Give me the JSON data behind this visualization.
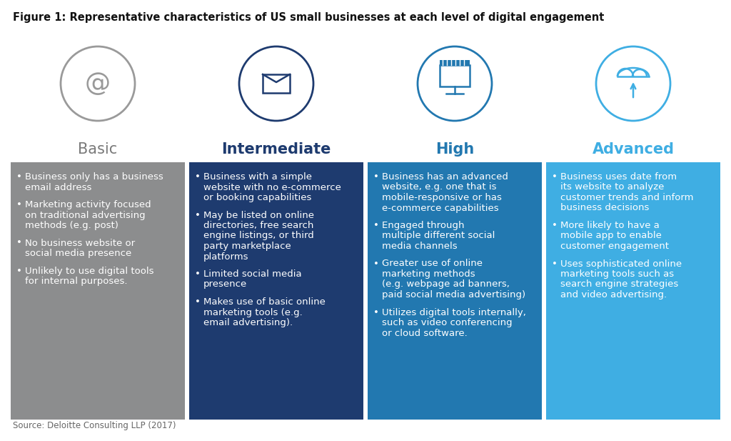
{
  "title": "Figure 1: Representative characteristics of US small businesses at each level of digital engagement",
  "source": "Source: Deloitte Consulting LLP (2017)",
  "columns": [
    {
      "label": "Basic",
      "label_color": "#7a7a7a",
      "label_bold": false,
      "bg_color": "#8c8d8e",
      "icon_color": "#9a9a9a",
      "bullets": [
        "Business only has a business\nemail address",
        "Marketing activity focused\non traditional advertising\nmethods (e.g. post)",
        "No business website or\nsocial media presence",
        "Unlikely to use digital tools\nfor internal purposes."
      ]
    },
    {
      "label": "Intermediate",
      "label_color": "#1e3b6f",
      "label_bold": true,
      "bg_color": "#1e3b6f",
      "icon_color": "#1e3b6f",
      "bullets": [
        "Business with a simple\nwebsite with no e-commerce\nor booking capabilities",
        "May be listed on online\ndirectories, free search\nengine listings, or third\nparty marketplace\nplatforms",
        "Limited social media\npresence",
        "Makes use of basic online\nmarketing tools (e.g.\nemail advertising)."
      ]
    },
    {
      "label": "High",
      "label_color": "#2278b0",
      "label_bold": true,
      "bg_color": "#2278b0",
      "icon_color": "#2278b0",
      "bullets": [
        "Business has an advanced\nwebsite, e.g. one that is\nmobile-responsive or has\ne-commerce capabilities",
        "Engaged through\nmultiple different social\nmedia channels",
        "Greater use of online\nmarketing methods\n(e.g. webpage ad banners,\npaid social media advertising)",
        "Utilizes digital tools internally,\nsuch as video conferencing\nor cloud software."
      ]
    },
    {
      "label": "Advanced",
      "label_color": "#3faee3",
      "label_bold": true,
      "bg_color": "#3faee3",
      "icon_color": "#3faee3",
      "bullets": [
        "Business uses date from\nits website to analyze\ncustomer trends and inform\nbusiness decisions",
        "More likely to have a\nmobile app to enable\ncustomer engagement",
        "Uses sophisticated online\nmarketing tools such as\nsearch engine strategies\nand video advertising."
      ]
    }
  ],
  "bg_color": "#ffffff",
  "title_fontsize": 10.5,
  "label_fontsize": 15,
  "bullet_fontsize": 9.5,
  "source_fontsize": 8.5
}
